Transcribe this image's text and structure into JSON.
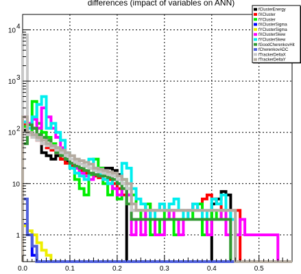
{
  "chart_data": {
    "type": "line",
    "title": "differences (impact of variables on ANN)",
    "xlabel": "",
    "ylabel": "",
    "xlim": [
      0.0,
      0.57
    ],
    "ylim": [
      0.3,
      20000
    ],
    "yscale": "log",
    "grid": true,
    "legend_position": "top-right",
    "x_ticks": [
      "0.0",
      "0.1",
      "0.2",
      "0.3",
      "0.4",
      "0.5"
    ],
    "y_ticks": [
      {
        "value": 1,
        "label": "1"
      },
      {
        "value": 10,
        "label": "10"
      },
      {
        "value": 100,
        "label": "10",
        "exp": "2"
      },
      {
        "value": 1000,
        "label": "10",
        "exp": "3"
      },
      {
        "value": 10000,
        "label": "10",
        "exp": "4"
      }
    ],
    "bin_width": 0.01,
    "bin_start": 0.0,
    "series": [
      {
        "name": "fClusterEnergy",
        "color": "#000000",
        "values": [
          110,
          100,
          120,
          90,
          40,
          35,
          30,
          35,
          30,
          28,
          25,
          26,
          24,
          22,
          20,
          18,
          20,
          20,
          20,
          18,
          15,
          10,
          0,
          0,
          0,
          0,
          0,
          0,
          0,
          0,
          0,
          0,
          0,
          0,
          0,
          0,
          0,
          0,
          0,
          0,
          4,
          5,
          7,
          6,
          0,
          0,
          0,
          0,
          0,
          0,
          0,
          0,
          0,
          0,
          0,
          0,
          0
        ]
      },
      {
        "name": "fXCluster",
        "color": "#ff0000",
        "values": [
          140,
          90,
          80,
          70,
          60,
          50,
          45,
          40,
          30,
          25,
          22,
          20,
          18,
          16,
          15,
          14,
          13,
          12,
          12,
          10,
          8,
          6,
          6,
          3,
          3,
          3,
          4,
          3,
          3,
          4,
          3,
          3,
          3,
          3,
          3,
          3,
          4,
          4,
          5,
          6,
          5,
          4,
          3,
          3,
          3,
          3,
          0,
          0,
          0,
          0,
          0,
          0,
          0,
          0,
          0,
          0,
          0
        ]
      },
      {
        "name": "fYCluster",
        "color": "#00ee00",
        "values": [
          130,
          100,
          400,
          150,
          100,
          80,
          60,
          50,
          40,
          30,
          20,
          12,
          8,
          6,
          15,
          30,
          20,
          10,
          6,
          8,
          5,
          12,
          8,
          6,
          3,
          2,
          4,
          1,
          2,
          1,
          3,
          2,
          1,
          2,
          2,
          2,
          3,
          4,
          1,
          2,
          3,
          2,
          3,
          2,
          0,
          0,
          0,
          0,
          0,
          0,
          0,
          0,
          0,
          0,
          0,
          0,
          0
        ]
      },
      {
        "name": "fXClusterSigma",
        "color": "#0000ff",
        "values": [
          1.6,
          1,
          0.4,
          0.3,
          0.3,
          0,
          0,
          0,
          0,
          0,
          0,
          0,
          0,
          0,
          0,
          0,
          0,
          0,
          0,
          0,
          0,
          0,
          0,
          0,
          0,
          0,
          0,
          0,
          0,
          0,
          0,
          0,
          0,
          0,
          0,
          0,
          0,
          0,
          0,
          0,
          0,
          0,
          0,
          0,
          0,
          0,
          0,
          0,
          0,
          0,
          0,
          0,
          0,
          0,
          0,
          0,
          0
        ]
      },
      {
        "name": "fYClusterSigma",
        "color": "#eeee00",
        "values": [
          1.5,
          1.2,
          1.0,
          0.7,
          0.5,
          0.4,
          0,
          0,
          0,
          0,
          0,
          0,
          0,
          0,
          0,
          0,
          0,
          0,
          0,
          0,
          0,
          0,
          0,
          0,
          0,
          0,
          0,
          0,
          0,
          0,
          0,
          0,
          0,
          0,
          0,
          0,
          0,
          0,
          0,
          0,
          0,
          0,
          0,
          0,
          0,
          0,
          0,
          0,
          0,
          0,
          0,
          0,
          0,
          0,
          0,
          0,
          0
        ]
      },
      {
        "name": "fXClusterSkew",
        "color": "#ff00ff",
        "values": [
          200,
          150,
          180,
          120,
          300,
          200,
          120,
          80,
          50,
          30,
          25,
          20,
          16,
          14,
          12,
          15,
          14,
          12,
          10,
          8,
          6,
          8,
          6,
          1,
          2,
          1,
          3,
          2,
          1,
          1,
          2,
          3,
          2,
          1,
          2,
          3,
          4,
          3,
          2,
          1,
          2,
          2,
          3,
          1,
          2,
          1,
          2,
          1,
          1,
          1,
          1,
          1,
          1,
          1,
          0,
          0,
          0
        ]
      },
      {
        "name": "fYClusterSkew",
        "color": "#00eeee",
        "values": [
          160,
          120,
          200,
          350,
          500,
          120,
          150,
          100,
          70,
          40,
          20,
          16,
          14,
          12,
          30,
          20,
          15,
          12,
          10,
          12,
          10,
          25,
          20,
          8,
          5,
          4,
          3,
          2,
          3,
          4,
          3,
          4,
          5,
          3,
          2,
          3,
          4,
          3,
          2,
          3,
          5,
          4,
          6,
          3,
          2,
          0,
          0,
          0,
          0,
          0,
          0,
          0,
          0,
          0,
          0,
          0,
          0
        ]
      },
      {
        "name": "fGoodCherenkovHit",
        "color": "#339933",
        "values": [
          60,
          140,
          120,
          90,
          80,
          70,
          50,
          40,
          35,
          30,
          25,
          22,
          20,
          18,
          16,
          15,
          14,
          14,
          13,
          12,
          10,
          8,
          4,
          2,
          2,
          2,
          2,
          2,
          2,
          2,
          2,
          2,
          2,
          2,
          2,
          2,
          2,
          2,
          2,
          2,
          2,
          2,
          2,
          2,
          0,
          0,
          0,
          0,
          0,
          0,
          0,
          0,
          0,
          0,
          0,
          0,
          0
        ]
      },
      {
        "name": "fCherenkovADC",
        "color": "#4f5fdd",
        "values": [
          5,
          1,
          0.6,
          0,
          0,
          0,
          0,
          0,
          0,
          0,
          0,
          0,
          0,
          0,
          0,
          0,
          0,
          0,
          0,
          0,
          0,
          0,
          0,
          0,
          0,
          0,
          0,
          0,
          0,
          0,
          0,
          0,
          0,
          0,
          0,
          0,
          0,
          0,
          0,
          0,
          0,
          0,
          0,
          0,
          0,
          0,
          0,
          0,
          0,
          0,
          0,
          0,
          0,
          0,
          0,
          0,
          0
        ]
      },
      {
        "name": "fTrackerDeltaX",
        "color": "#c8c8c8",
        "values": [
          8000,
          90,
          80,
          70,
          60,
          55,
          50,
          45,
          40,
          35,
          30,
          26,
          24,
          22,
          20,
          18,
          17,
          16,
          15,
          14,
          12,
          10,
          8,
          3,
          3,
          3,
          3,
          3,
          3,
          3,
          3,
          3,
          3,
          3,
          3,
          3,
          3,
          3,
          3,
          3,
          3,
          3,
          3,
          3,
          3,
          0,
          0,
          0,
          0,
          0,
          0,
          0,
          0,
          0,
          0,
          0,
          0
        ]
      },
      {
        "name": "fTrackerDeltaY",
        "color": "#b4aba0",
        "values": [
          200,
          100,
          90,
          80,
          70,
          60,
          55,
          50,
          45,
          40,
          35,
          30,
          28,
          26,
          24,
          20,
          19,
          18,
          17,
          16,
          14,
          12,
          10,
          4,
          3,
          3,
          3,
          3,
          3,
          3,
          3,
          3,
          3,
          3,
          3,
          3,
          3,
          3,
          3,
          3,
          3,
          3,
          3,
          3,
          3,
          0,
          0,
          0,
          0,
          0,
          0,
          0,
          0,
          0,
          0,
          0,
          0
        ]
      }
    ]
  }
}
